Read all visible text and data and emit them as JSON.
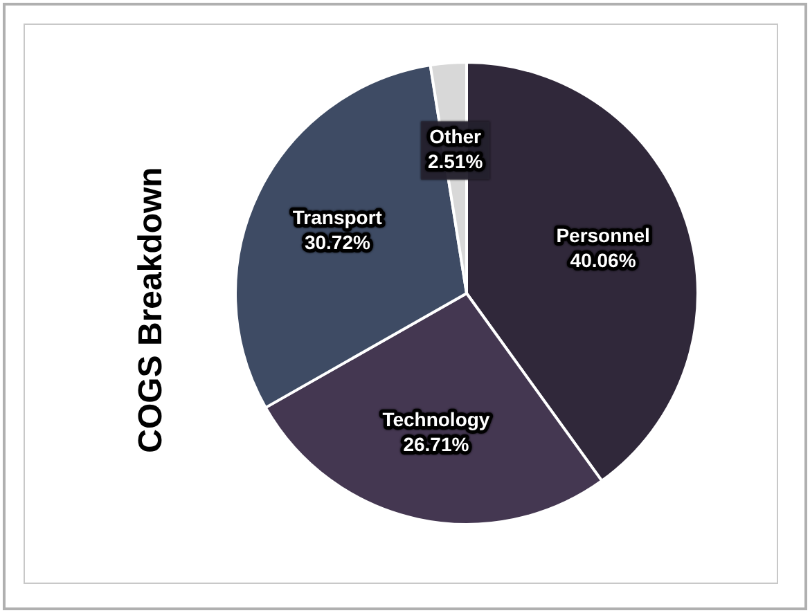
{
  "chart_data": {
    "type": "pie",
    "title": "COGS Breakdown",
    "categories": [
      "Personnel",
      "Technology",
      "Transport",
      "Other"
    ],
    "values": [
      40.06,
      26.71,
      30.72,
      2.51
    ],
    "value_labels": [
      "40.06%",
      "26.71%",
      "30.72%",
      "2.51%"
    ],
    "colors": [
      "#30283a",
      "#443751",
      "#3e4b64",
      "#d8d8d8"
    ],
    "legend": false
  }
}
